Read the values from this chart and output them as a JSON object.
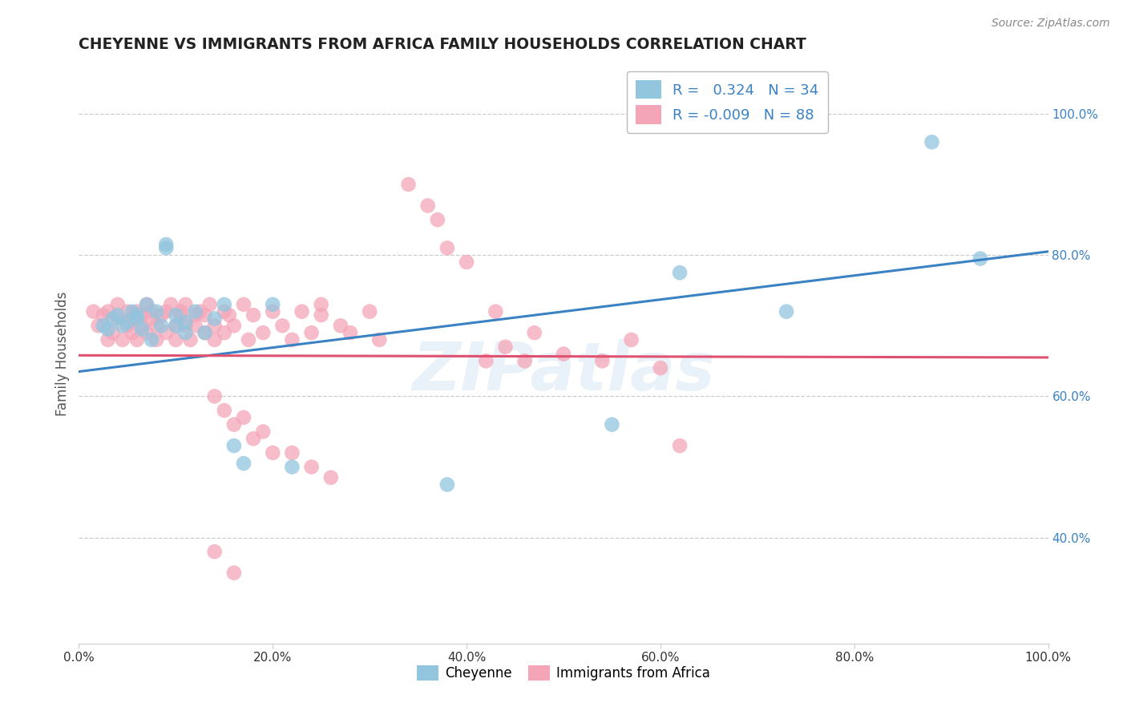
{
  "title": "CHEYENNE VS IMMIGRANTS FROM AFRICA FAMILY HOUSEHOLDS CORRELATION CHART",
  "source": "Source: ZipAtlas.com",
  "ylabel": "Family Households",
  "legend_labels": [
    "Cheyenne",
    "Immigrants from Africa"
  ],
  "blue_r": "0.324",
  "blue_n": "34",
  "pink_r": "-0.009",
  "pink_n": "88",
  "blue_color": "#92c5de",
  "pink_color": "#f4a6b8",
  "blue_line_color": "#3b82c4",
  "pink_line_color": "#e05070",
  "watermark": "ZIPatlas",
  "xlim": [
    0.0,
    1.0
  ],
  "ylim": [
    0.25,
    1.07
  ],
  "right_yticks": [
    0.4,
    0.6,
    0.8,
    1.0
  ],
  "right_yticklabels": [
    "40.0%",
    "60.0%",
    "80.0%",
    "100.0%"
  ],
  "xticks": [
    0.0,
    0.2,
    0.4,
    0.6,
    0.8,
    1.0
  ],
  "xticklabels": [
    "0.0%",
    "20.0%",
    "40.0%",
    "60.0%",
    "80.0%",
    "100.0%"
  ],
  "blue_scatter_x": [
    0.025,
    0.03,
    0.035,
    0.04,
    0.045,
    0.05,
    0.055,
    0.06,
    0.06,
    0.065,
    0.07,
    0.075,
    0.08,
    0.085,
    0.09,
    0.09,
    0.1,
    0.1,
    0.11,
    0.11,
    0.12,
    0.13,
    0.14,
    0.15,
    0.16,
    0.17,
    0.2,
    0.22,
    0.38,
    0.55,
    0.62,
    0.73,
    0.88,
    0.93
  ],
  "blue_scatter_y": [
    0.7,
    0.695,
    0.71,
    0.715,
    0.7,
    0.705,
    0.72,
    0.71,
    0.715,
    0.695,
    0.73,
    0.68,
    0.72,
    0.7,
    0.81,
    0.815,
    0.7,
    0.715,
    0.705,
    0.69,
    0.72,
    0.69,
    0.71,
    0.73,
    0.53,
    0.505,
    0.73,
    0.5,
    0.475,
    0.56,
    0.775,
    0.72,
    0.96,
    0.795
  ],
  "pink_scatter_x": [
    0.015,
    0.02,
    0.025,
    0.03,
    0.03,
    0.035,
    0.04,
    0.04,
    0.045,
    0.05,
    0.05,
    0.055,
    0.055,
    0.06,
    0.06,
    0.065,
    0.065,
    0.07,
    0.07,
    0.075,
    0.075,
    0.08,
    0.08,
    0.085,
    0.09,
    0.09,
    0.095,
    0.1,
    0.1,
    0.105,
    0.105,
    0.11,
    0.11,
    0.115,
    0.12,
    0.12,
    0.125,
    0.13,
    0.13,
    0.135,
    0.14,
    0.14,
    0.15,
    0.15,
    0.155,
    0.16,
    0.17,
    0.175,
    0.18,
    0.19,
    0.2,
    0.21,
    0.22,
    0.23,
    0.24,
    0.25,
    0.25,
    0.27,
    0.28,
    0.3,
    0.31,
    0.34,
    0.36,
    0.37,
    0.38,
    0.4,
    0.42,
    0.43,
    0.44,
    0.46,
    0.47,
    0.5,
    0.54,
    0.57,
    0.14,
    0.15,
    0.16,
    0.17,
    0.18,
    0.19,
    0.2,
    0.22,
    0.24,
    0.26,
    0.6,
    0.62,
    0.14,
    0.16
  ],
  "pink_scatter_y": [
    0.72,
    0.7,
    0.715,
    0.68,
    0.72,
    0.69,
    0.71,
    0.73,
    0.68,
    0.7,
    0.72,
    0.69,
    0.71,
    0.72,
    0.68,
    0.7,
    0.715,
    0.73,
    0.69,
    0.71,
    0.72,
    0.68,
    0.7,
    0.715,
    0.72,
    0.69,
    0.73,
    0.7,
    0.68,
    0.715,
    0.72,
    0.7,
    0.73,
    0.68,
    0.715,
    0.7,
    0.72,
    0.69,
    0.715,
    0.73,
    0.7,
    0.68,
    0.72,
    0.69,
    0.715,
    0.7,
    0.73,
    0.68,
    0.715,
    0.69,
    0.72,
    0.7,
    0.68,
    0.72,
    0.69,
    0.715,
    0.73,
    0.7,
    0.69,
    0.72,
    0.68,
    0.9,
    0.87,
    0.85,
    0.81,
    0.79,
    0.65,
    0.72,
    0.67,
    0.65,
    0.69,
    0.66,
    0.65,
    0.68,
    0.6,
    0.58,
    0.56,
    0.57,
    0.54,
    0.55,
    0.52,
    0.52,
    0.5,
    0.485,
    0.64,
    0.53,
    0.38,
    0.35
  ],
  "blue_trend_y_start": 0.635,
  "blue_trend_y_end": 0.805,
  "pink_trend_y_start": 0.658,
  "pink_trend_y_end": 0.655,
  "grid_color": "#cccccc",
  "background_color": "#ffffff",
  "title_color": "#222222",
  "axis_color": "#555555",
  "source_color": "#888888"
}
